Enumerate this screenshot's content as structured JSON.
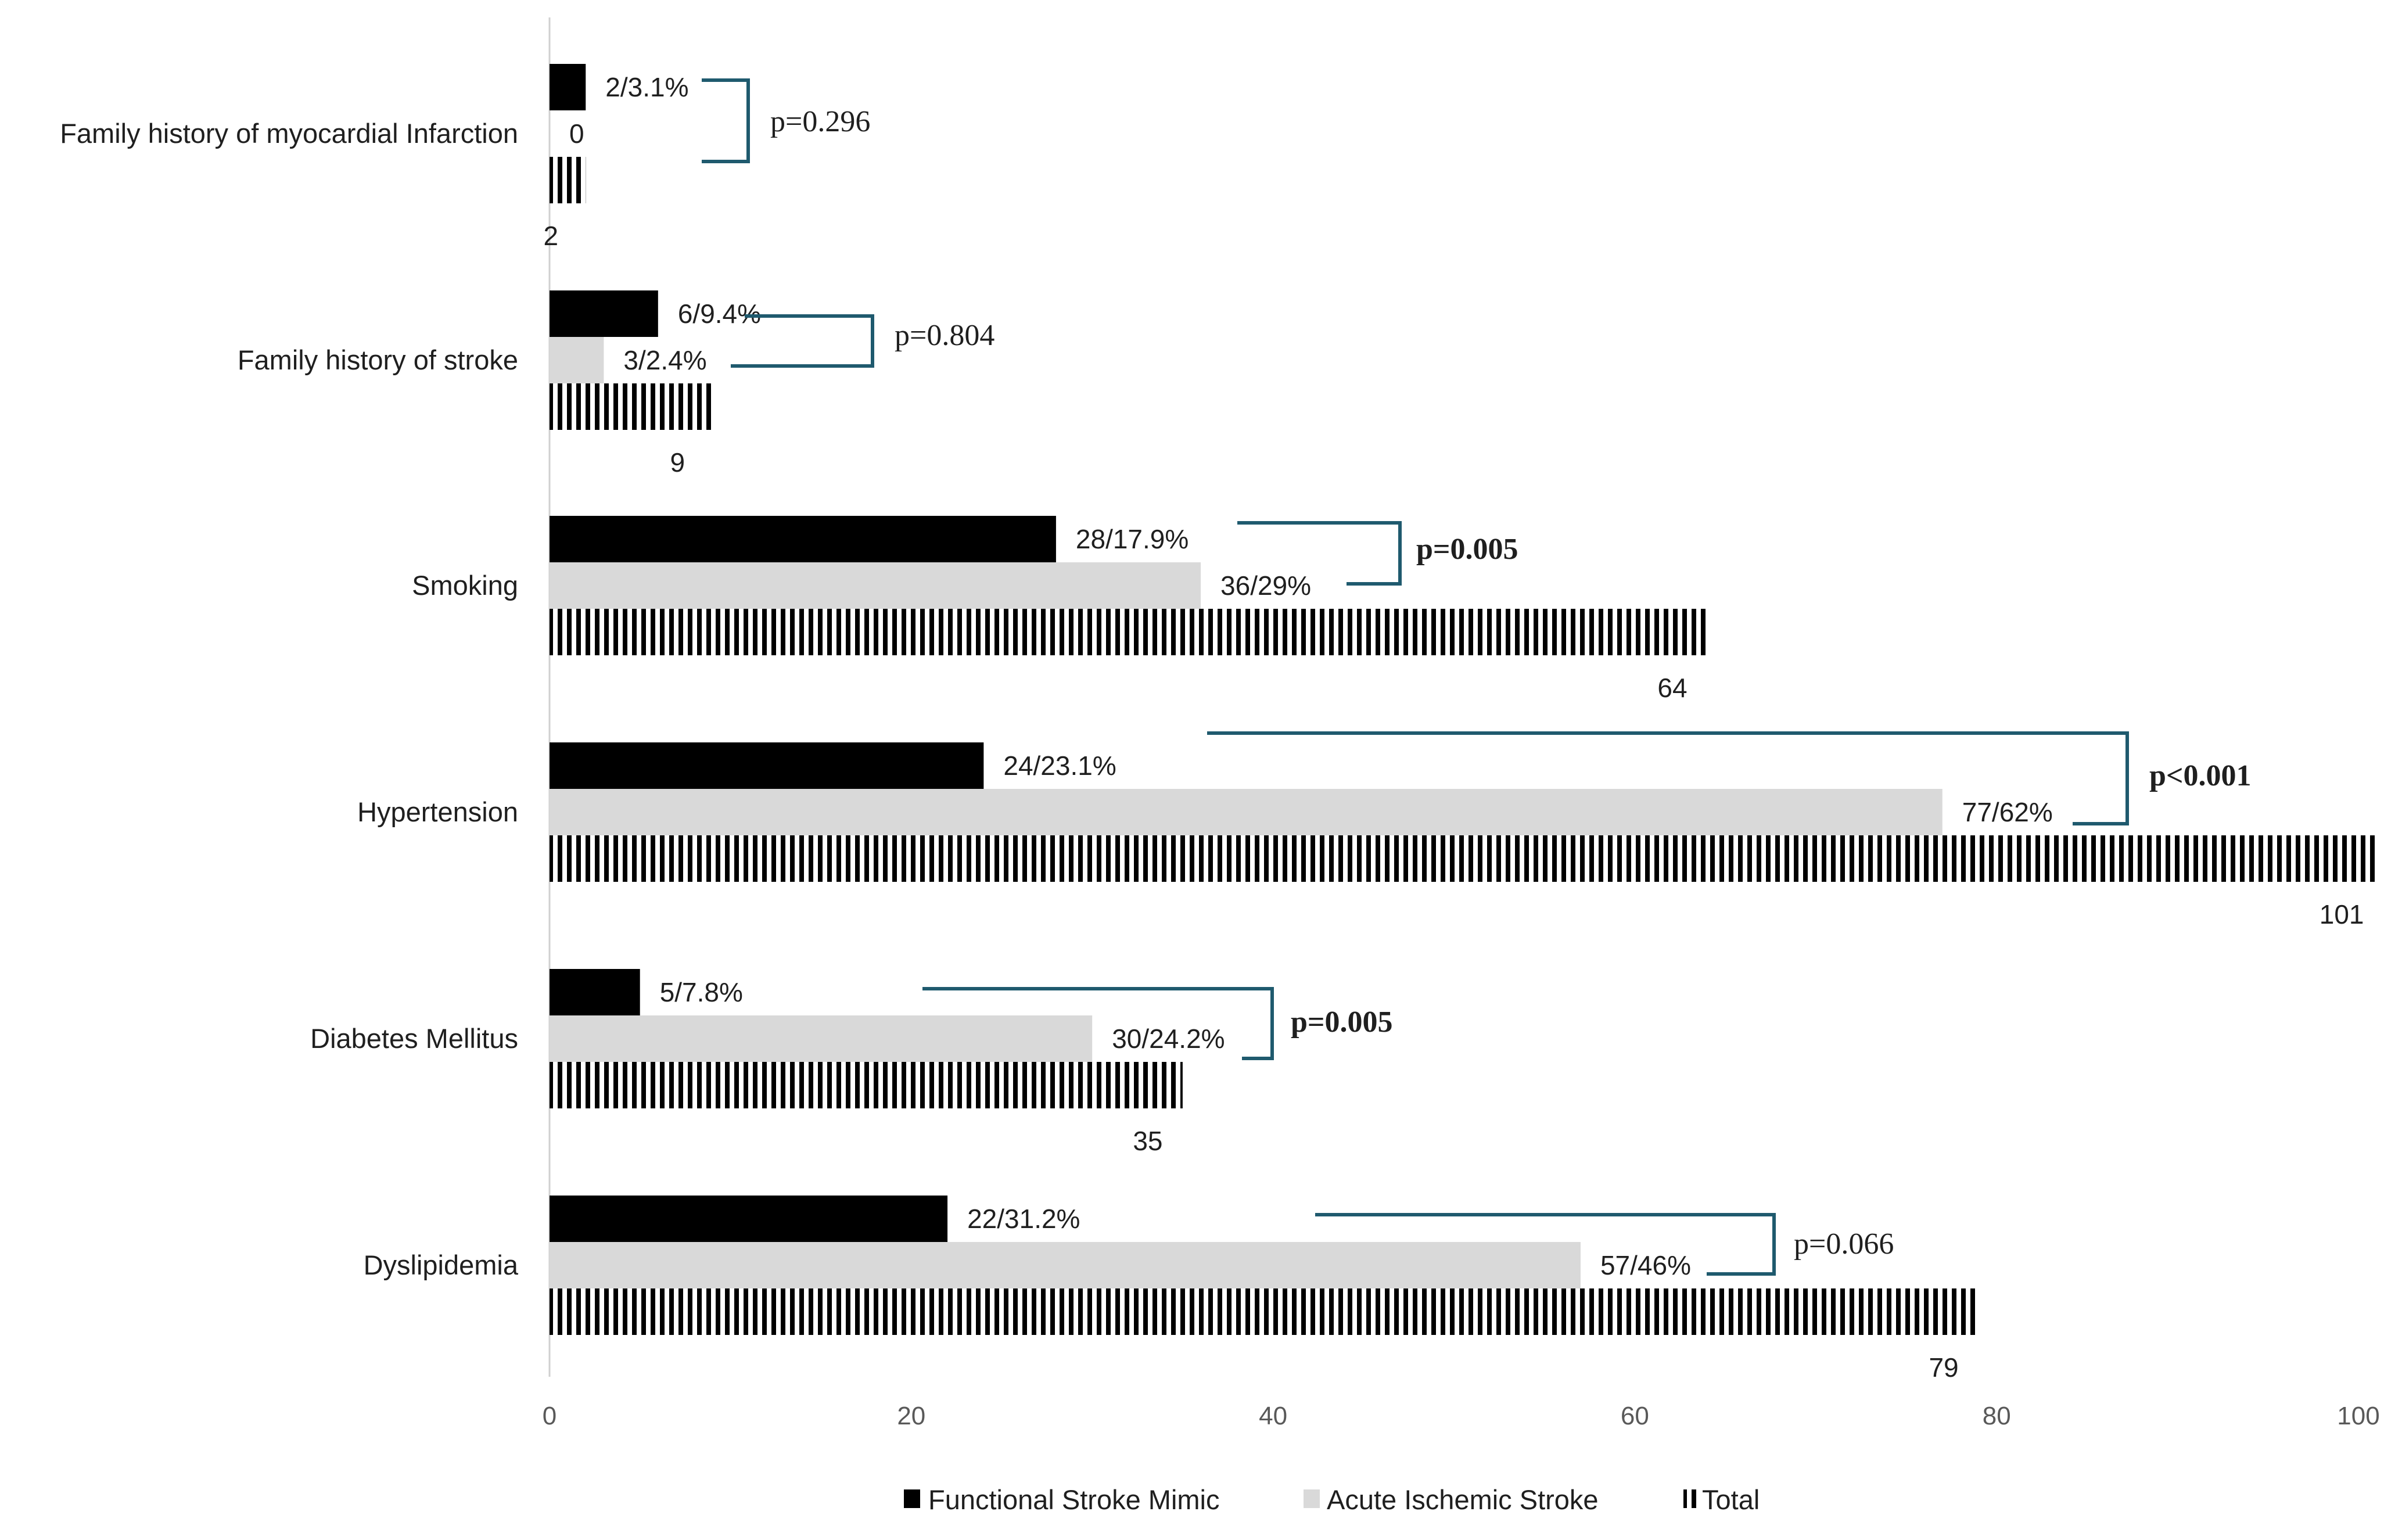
{
  "chart_data": {
    "type": "bar",
    "orientation": "horizontal",
    "categories": [
      "Family history of myocardial Infarction",
      "Family history of stroke",
      "Smoking",
      "Hypertension",
      "Diabetes Mellitus",
      "Dyslipidemia"
    ],
    "series": [
      {
        "name": "Functional Stroke Mimic",
        "color": "#000000",
        "pattern": "solid",
        "values": [
          2,
          6,
          28,
          24,
          5,
          22
        ],
        "labels": [
          "2/3.1%",
          "6/9.4%",
          "28/17.9%",
          "24/23.1%",
          "5/7.8%",
          "22/31.2%"
        ]
      },
      {
        "name": "Acute Ischemic Stroke",
        "color": "#d9d9d9",
        "pattern": "solid",
        "values": [
          0,
          3,
          36,
          77,
          30,
          57
        ],
        "labels": [
          "0",
          "3/2.4%",
          "36/29%",
          "77/62%",
          "30/24.2%",
          "57/46%"
        ]
      },
      {
        "name": "Total",
        "color": "#000000",
        "pattern": "vertical-stripes",
        "values": [
          2,
          9,
          64,
          101,
          35,
          79
        ],
        "labels": [
          "2",
          "9",
          "64",
          "101",
          "35",
          "79"
        ]
      }
    ],
    "p_values": [
      {
        "text": "p=0.296",
        "bold": false
      },
      {
        "text": "p=0.804",
        "bold": false
      },
      {
        "text": "p=0.005",
        "bold": true
      },
      {
        "text": "p<0.001",
        "bold": true
      },
      {
        "text": "p=0.005",
        "bold": true
      },
      {
        "text": "p=0.066",
        "bold": false
      }
    ],
    "xlim": [
      0,
      100
    ],
    "xticks": [
      0,
      20,
      40,
      60,
      80,
      100
    ],
    "title": "",
    "xlabel": "",
    "ylabel": "",
    "grid": false,
    "legend_position": "bottom",
    "bracket_color": "#1f5a6e"
  }
}
